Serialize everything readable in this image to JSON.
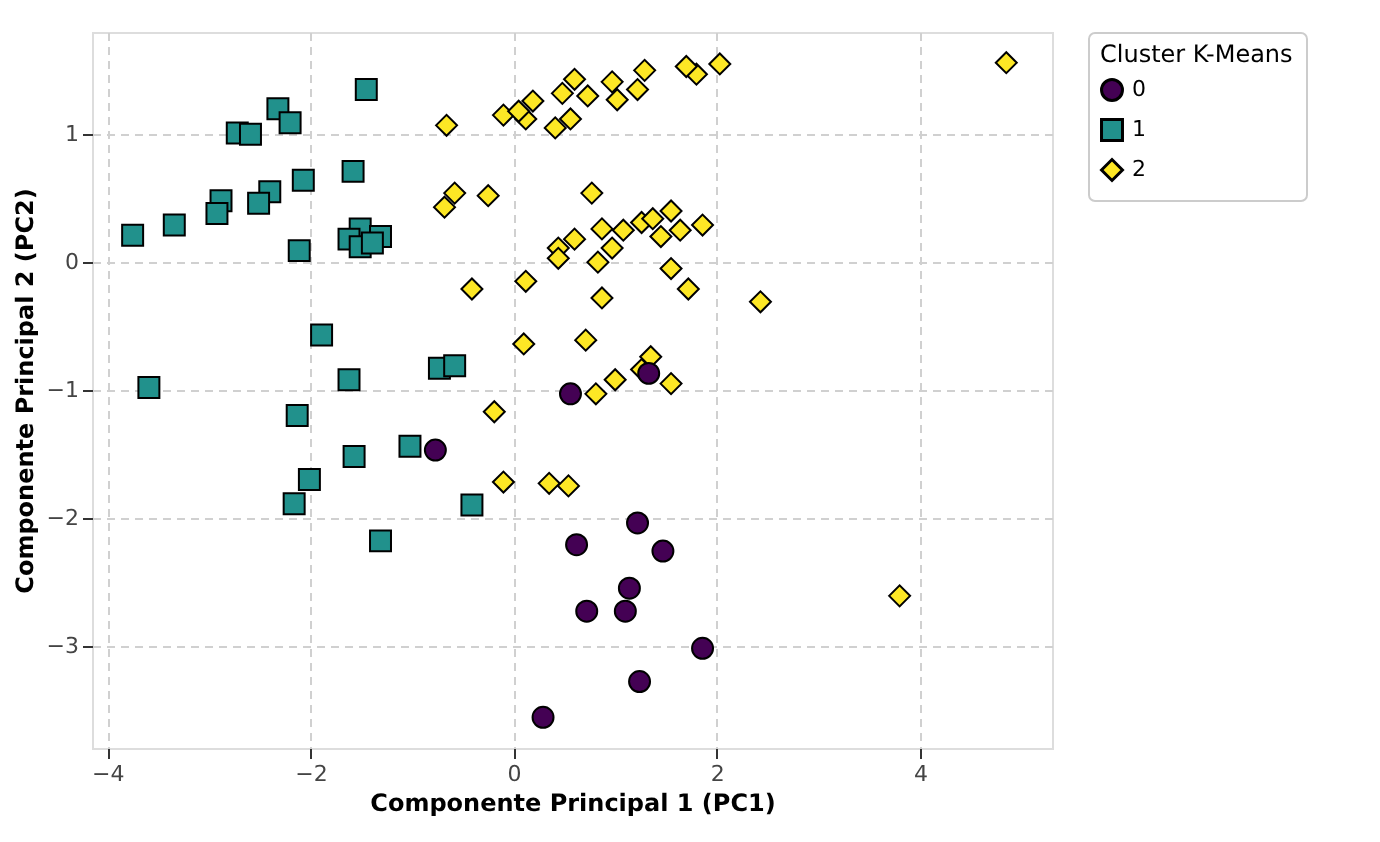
{
  "chart_data": {
    "type": "scatter",
    "xlabel": "Componente Principal 1 (PC1)",
    "ylabel": "Componente Principal 2 (PC2)",
    "legend_title": "Cluster K-Means",
    "legend": "top right",
    "grid": true,
    "xlim": [
      -4.15,
      5.3
    ],
    "ylim": [
      -3.8,
      1.8
    ],
    "xticks": [
      -4,
      -2,
      0,
      2,
      4
    ],
    "yticks": [
      -3,
      -2,
      -1,
      0,
      1
    ],
    "series": [
      {
        "name": "0",
        "color": "#440154",
        "marker": "circle",
        "x": [
          0.56,
          -0.77,
          1.22,
          0.62,
          1.47,
          1.14,
          0.72,
          1.1,
          1.86,
          1.24,
          0.29,
          1.33
        ],
        "values": [
          -1.03,
          -1.47,
          -2.04,
          -2.21,
          -2.26,
          -2.55,
          -2.73,
          -2.73,
          -3.02,
          -3.28,
          -3.56,
          -0.87
        ]
      },
      {
        "name": "1",
        "color": "#21918c",
        "marker": "square",
        "x": [
          null,
          -1.45,
          -2.32,
          -2.2,
          -2.72,
          -2.59,
          -1.58,
          -2.07,
          -2.4,
          -2.88,
          -2.51,
          -2.92,
          -3.34,
          -3.75,
          -2.11,
          -1.51,
          -1.62,
          -1.31,
          -1.51,
          -1.39,
          -1.89,
          -3.59,
          -0.73,
          -0.58,
          -1.62,
          -2.13,
          -1.02,
          -1.57,
          -2.01,
          -2.16,
          -0.41,
          -1.31
        ],
        "values": [
          null,
          1.35,
          1.2,
          1.09,
          1.01,
          1.0,
          0.71,
          0.64,
          0.55,
          0.48,
          0.46,
          0.38,
          0.29,
          0.21,
          0.09,
          0.26,
          0.18,
          0.2,
          0.12,
          0.15,
          -0.57,
          -0.98,
          -0.83,
          -0.81,
          -0.92,
          -1.2,
          -1.44,
          -1.52,
          -1.7,
          -1.89,
          -1.9,
          -2.18
        ]
      },
      {
        "name": "2",
        "color": "#fde725",
        "marker": "diamond",
        "x": [
          -0.66,
          -0.58,
          -0.68,
          -0.25,
          -0.41,
          0.12,
          0.1,
          -0.19,
          -0.1,
          0.35,
          0.54,
          4.85,
          2.03,
          null,
          1.8,
          1.7,
          1.29,
          0.97,
          1.22,
          0.6,
          0.48,
          0.73,
          1.02,
          0.19,
          0.12,
          0.41,
          0.56,
          -0.1,
          0.05,
          0.77,
          0.87,
          1.08,
          1.26,
          1.37,
          1.55,
          1.64,
          1.86,
          1.45,
          0.97,
          0.6,
          0.44,
          0.44,
          0.83,
          1.55,
          1.72,
          0.87,
          2.43,
          0.71,
          1.35,
          1.26,
          1.55,
          1.0,
          0.81,
          3.8
        ],
        "values": [
          1.07,
          0.54,
          0.43,
          0.52,
          -0.21,
          -0.15,
          -0.64,
          -1.17,
          -1.72,
          -1.73,
          -1.75,
          1.56,
          1.55,
          null,
          1.47,
          1.53,
          1.5,
          1.41,
          1.35,
          1.43,
          1.32,
          1.3,
          1.27,
          1.26,
          1.12,
          1.05,
          1.12,
          1.15,
          1.18,
          0.54,
          0.26,
          0.25,
          0.31,
          0.34,
          0.4,
          0.25,
          0.29,
          0.2,
          0.11,
          0.18,
          0.11,
          0.03,
          0.0,
          -0.05,
          -0.21,
          -0.28,
          -0.31,
          -0.61,
          -0.74,
          -0.84,
          -0.95,
          -0.92,
          -1.03,
          -2.61
        ]
      }
    ]
  }
}
